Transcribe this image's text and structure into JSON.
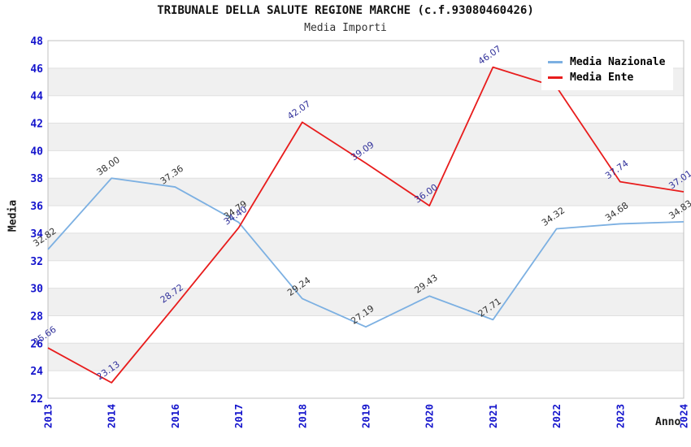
{
  "header": {
    "title": "TRIBUNALE DELLA SALUTE REGIONE MARCHE (c.f.93080460426)",
    "subtitle": "Media Importi"
  },
  "chart_data": {
    "type": "line",
    "title": "TRIBUNALE DELLA SALUTE REGIONE MARCHE (c.f.93080460426)",
    "subtitle": "Media Importi",
    "xlabel": "Anno",
    "ylabel": "Media",
    "ylim": [
      22,
      48
    ],
    "ytick_step": 2,
    "grid": "horizontal-bands",
    "legend_position": "top-right",
    "categories": [
      "2013",
      "2014",
      "2016",
      "2017",
      "2018",
      "2019",
      "2020",
      "2021",
      "2022",
      "2023",
      "2024"
    ],
    "series": [
      {
        "name": "Media Nazionale",
        "color": "#7cb0e2",
        "label_color": "#333333",
        "values": [
          32.82,
          38.0,
          37.36,
          34.79,
          29.24,
          27.19,
          29.43,
          27.71,
          34.32,
          34.68,
          34.83
        ],
        "labels": [
          "32.82",
          "38.00",
          "37.36",
          "34.79",
          "29.24",
          "27.19",
          "29.43",
          "27.71",
          "34.32",
          "34.68",
          "34.83"
        ]
      },
      {
        "name": "Media Ente",
        "color": "#e81c1c",
        "label_color": "#32329b",
        "values": [
          25.66,
          23.13,
          28.72,
          34.4,
          42.07,
          39.09,
          36.0,
          46.07,
          44.63,
          37.74,
          37.01
        ],
        "labels": [
          "25.66",
          "23.13",
          "28.72",
          "34.40",
          "42.07",
          "39.09",
          "36.00",
          "46.07",
          null,
          "37.74",
          "37.01"
        ]
      }
    ],
    "theme": {
      "band_fill": "#f0f0f0",
      "grid_line": "#e0e0e0",
      "plot_border": "#c0c0c0",
      "tick_color": "#1414cc"
    }
  }
}
